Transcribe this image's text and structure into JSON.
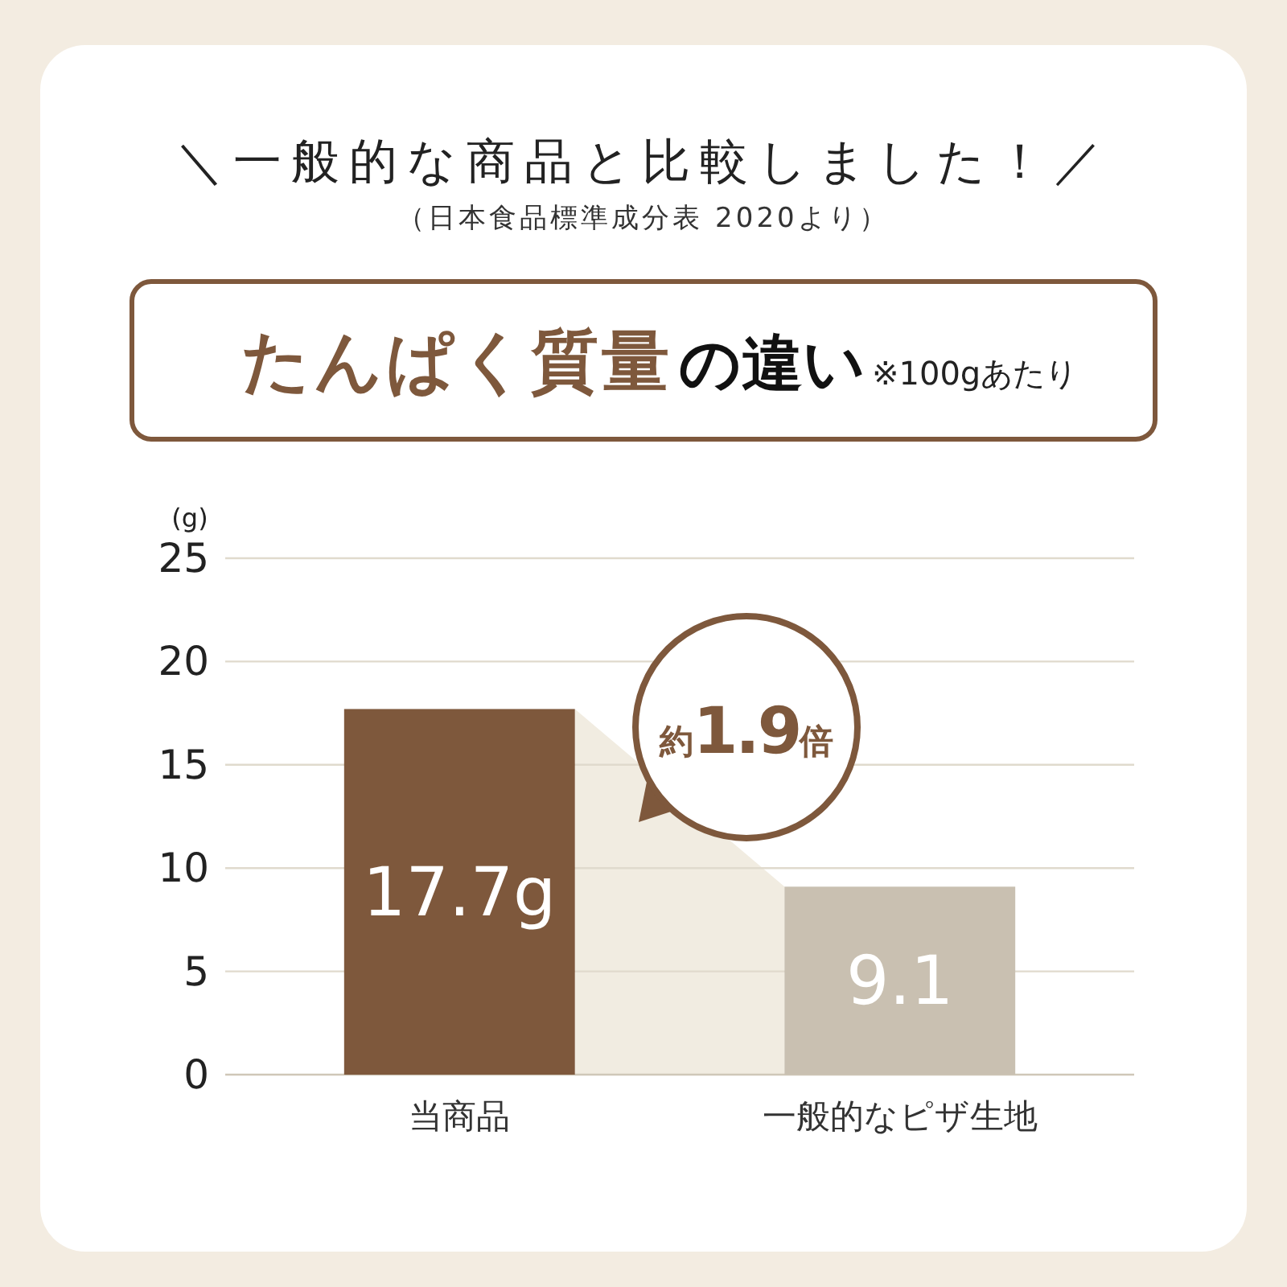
{
  "chart_data": {
    "type": "bar",
    "title": "＼一般的な商品と比較しました！／",
    "subtitle": "（日本食品標準成分表 2020より）",
    "ylabel": "(g)",
    "annotations": [
      "たんぱく質量",
      "の違い",
      "※100gあたり",
      "約1.9倍"
    ],
    "categories": [
      "当商品",
      "一般的なピザ生地"
    ],
    "values": [
      17.7,
      9.1
    ],
    "colors": [
      "#7e583c",
      "#c9c0b1"
    ],
    "value_labels": [
      "17.7g",
      "9.1"
    ],
    "ylim": [
      0,
      25
    ],
    "yticks": [
      0,
      5,
      10,
      15,
      20,
      25
    ],
    "grid": "y"
  }
}
